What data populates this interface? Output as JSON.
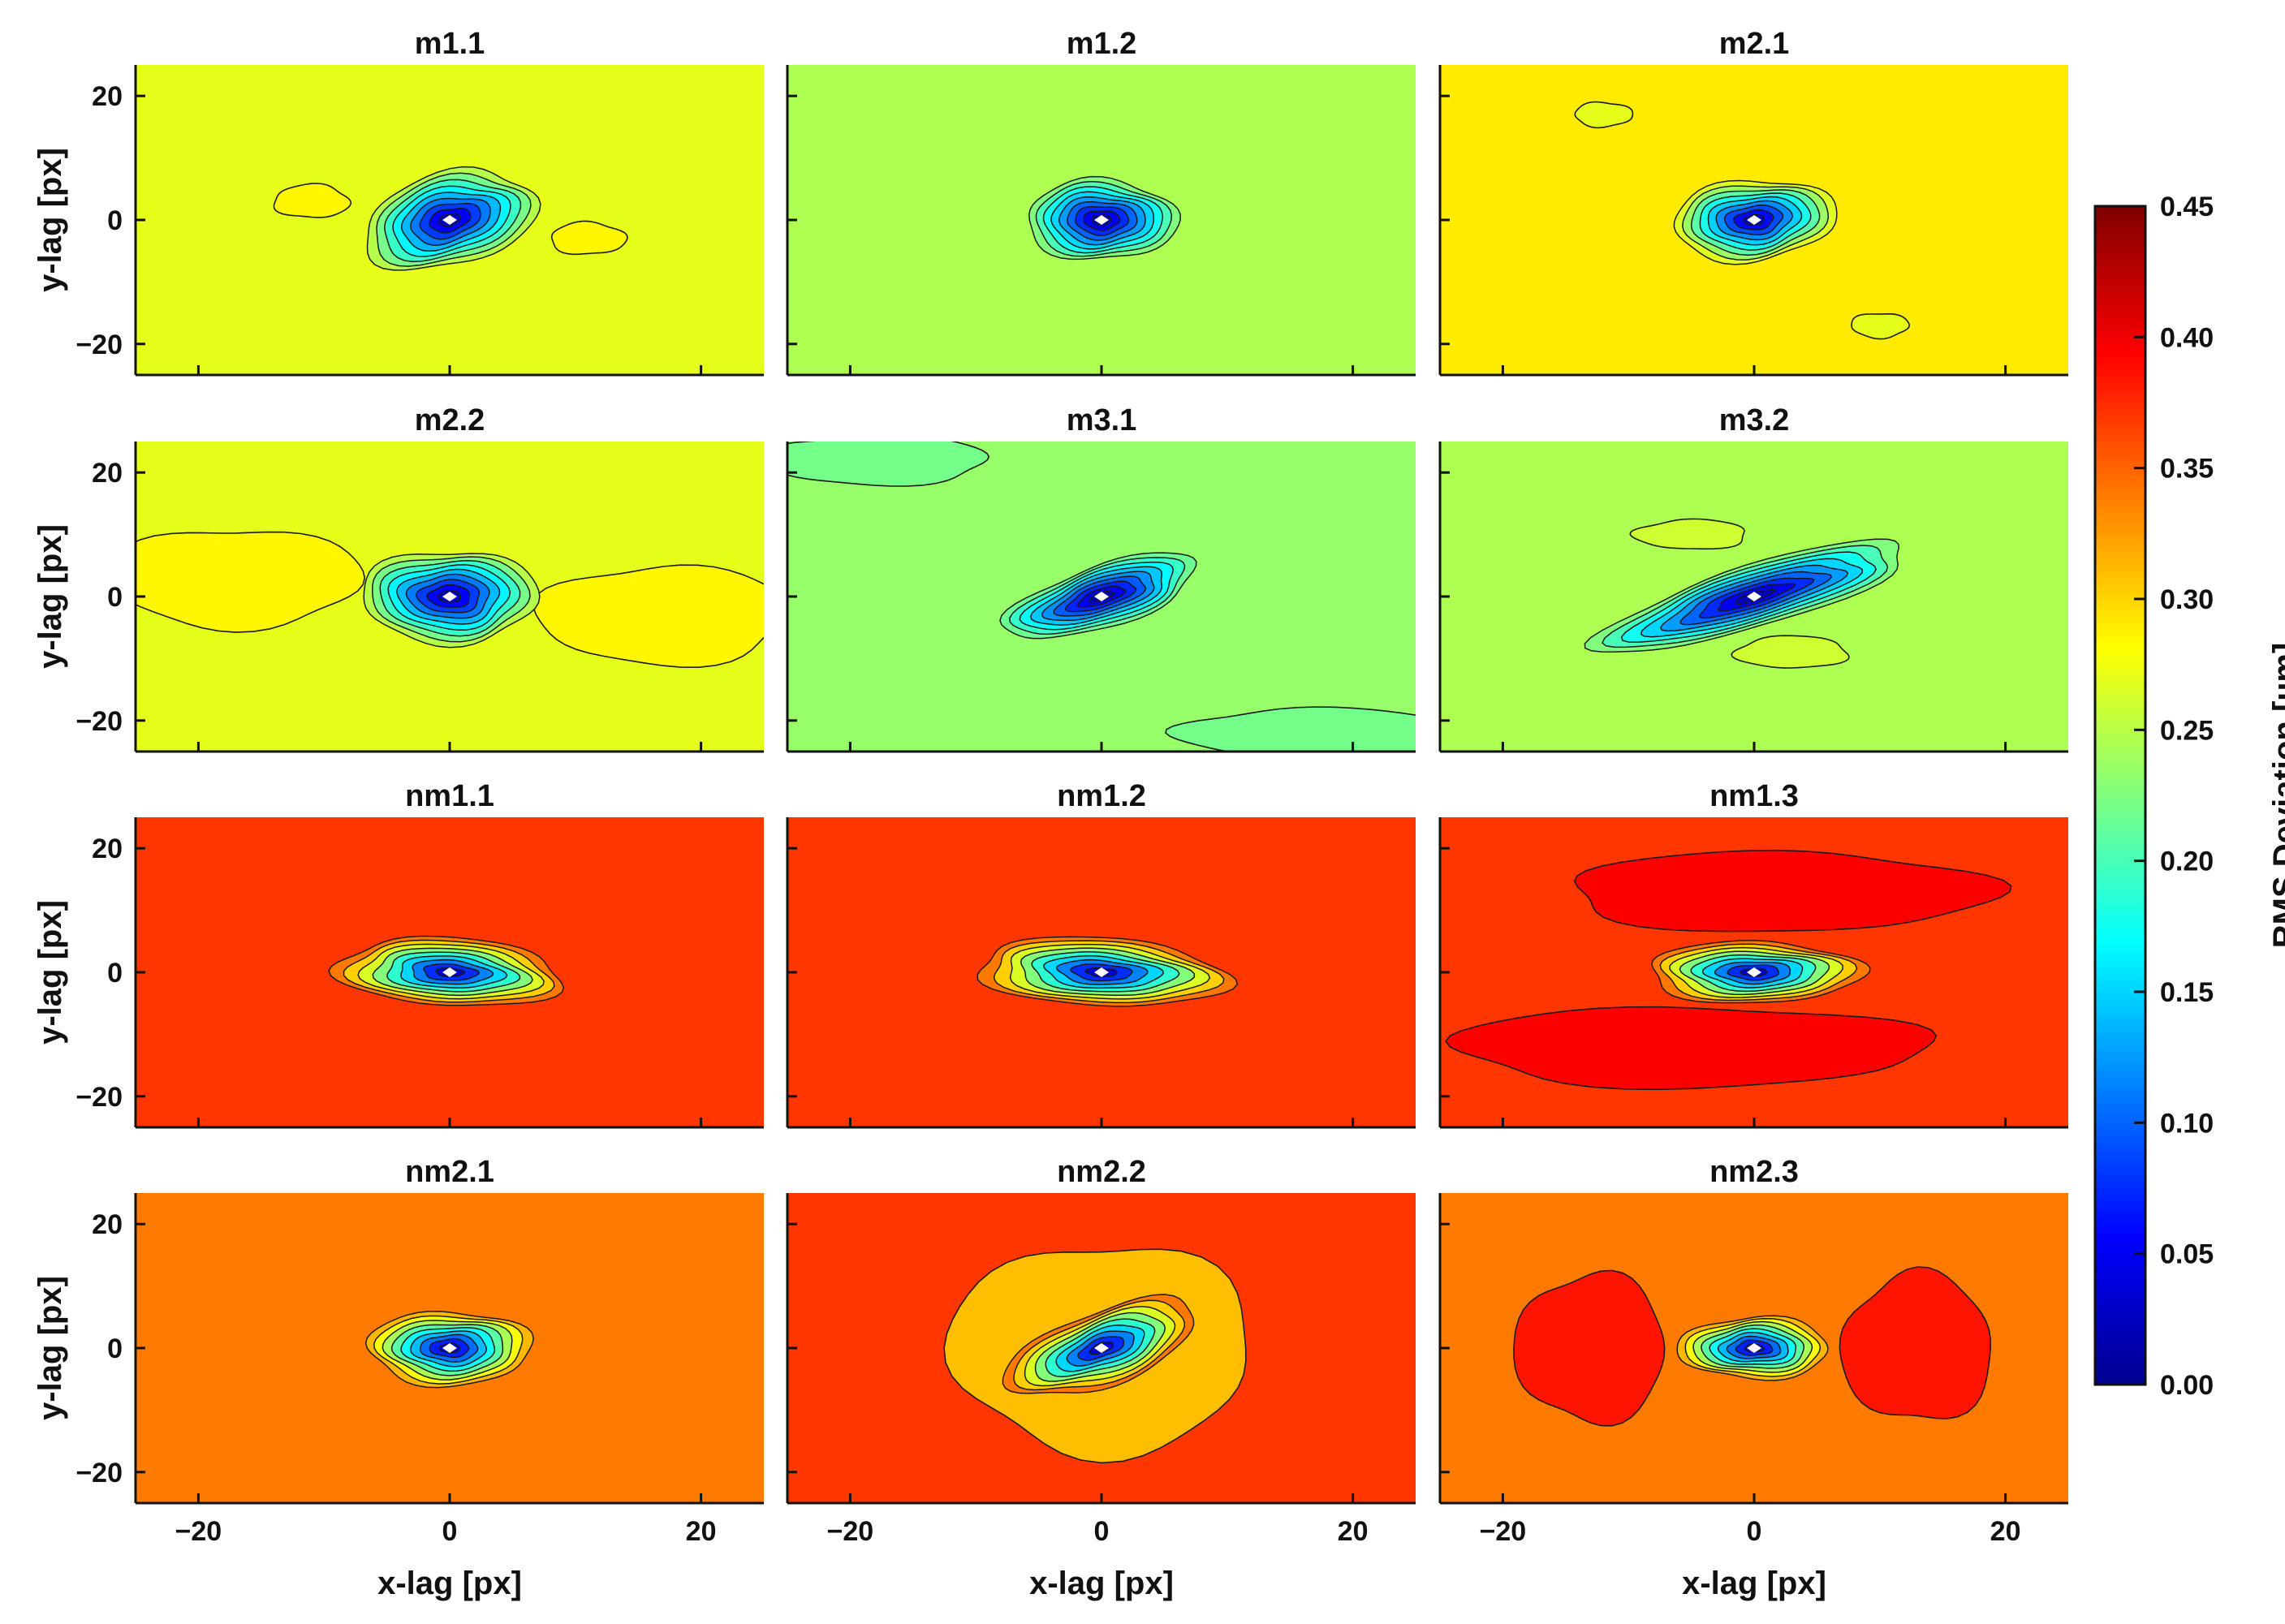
{
  "chart_data": {
    "type": "heatmap",
    "subtype": "filled-contour",
    "layout": {
      "rows": 4,
      "cols": 3
    },
    "xlabel": "x-lag [px]",
    "ylabel": "y-lag [px]",
    "xlim": [
      -25,
      25
    ],
    "ylim": [
      -25,
      25
    ],
    "xticks": [
      -20,
      0,
      20
    ],
    "yticks": [
      -20,
      0,
      20
    ],
    "colorbar": {
      "label": "RMS Deviation [µm]",
      "min": 0.0,
      "max": 0.45,
      "ticks": [
        "0.00",
        "0.05",
        "0.10",
        "0.15",
        "0.20",
        "0.25",
        "0.30",
        "0.35",
        "0.40",
        "0.45"
      ]
    },
    "panels": [
      {
        "title": "m1.1",
        "background": 0.27,
        "center_min": 0.0,
        "center_ellipse": {
          "rx": 7,
          "ry": 7.5,
          "angle": 14
        },
        "blobs": [
          {
            "cx": -11,
            "cy": 3,
            "rx": 3,
            "ry": 2.7,
            "level": 0.285
          },
          {
            "cx": 11,
            "cy": -3,
            "rx": 3,
            "ry": 2.6,
            "level": 0.285
          }
        ]
      },
      {
        "title": "m1.2",
        "background": 0.245,
        "center_min": 0.0,
        "center_ellipse": {
          "rx": 6,
          "ry": 6.5,
          "angle": 0
        },
        "blobs": []
      },
      {
        "title": "m2.1",
        "background": 0.29,
        "center_min": 0.0,
        "center_ellipse": {
          "rx": 6.5,
          "ry": 6.5,
          "angle": 5
        },
        "blobs": [
          {
            "cx": -12,
            "cy": 17,
            "rx": 2.3,
            "ry": 2,
            "level": 0.27
          },
          {
            "cx": 10,
            "cy": -17,
            "rx": 2.3,
            "ry": 2,
            "level": 0.27
          }
        ]
      },
      {
        "title": "m2.2",
        "background": 0.27,
        "center_min": 0.0,
        "center_ellipse": {
          "rx": 7,
          "ry": 7.5,
          "angle": 0
        },
        "blobs": [
          {
            "cx": -17,
            "cy": 3,
            "rx": 10,
            "ry": 8,
            "level": 0.285
          },
          {
            "cx": 17,
            "cy": -3,
            "rx": 10,
            "ry": 8,
            "level": 0.285
          }
        ]
      },
      {
        "title": "m3.1",
        "background": 0.235,
        "center_min": 0.0,
        "center_ellipse": {
          "rx": 8,
          "ry": 5,
          "angle": 18
        },
        "blobs": [
          {
            "cx": -18,
            "cy": 22,
            "rx": 9,
            "ry": 4,
            "level": 0.22
          },
          {
            "cx": 17,
            "cy": -22,
            "rx": 11,
            "ry": 4,
            "level": 0.22
          }
        ]
      },
      {
        "title": "m3.2",
        "background": 0.245,
        "center_min": 0.0,
        "center_ellipse": {
          "rx": 13,
          "ry": 5,
          "angle": 17
        },
        "blobs": [
          {
            "cx": -5,
            "cy": 10,
            "rx": 4.5,
            "ry": 2.4,
            "level": 0.26
          },
          {
            "cx": 3,
            "cy": -9,
            "rx": 4.5,
            "ry": 2.6,
            "level": 0.26
          }
        ]
      },
      {
        "title": "nm1.1",
        "background": 0.37,
        "center_min": 0.0,
        "center_ellipse": {
          "rx": 9,
          "ry": 5.5,
          "angle": -3
        },
        "blobs": []
      },
      {
        "title": "nm1.2",
        "background": 0.37,
        "center_min": 0.0,
        "center_ellipse": {
          "rx": 10,
          "ry": 5.5,
          "angle": -3
        },
        "blobs": []
      },
      {
        "title": "nm1.3",
        "background": 0.37,
        "center_min": 0.0,
        "center_ellipse": {
          "rx": 8.5,
          "ry": 5,
          "angle": 0
        },
        "blobs": [
          {
            "cx": 2,
            "cy": 13,
            "rx": 17,
            "ry": 6.5,
            "level": 0.395
          },
          {
            "cx": -5,
            "cy": -12,
            "rx": 19,
            "ry": 6.5,
            "level": 0.395
          }
        ]
      },
      {
        "title": "nm2.1",
        "background": 0.34,
        "center_min": 0.0,
        "center_ellipse": {
          "rx": 6.5,
          "ry": 6,
          "angle": 0
        },
        "blobs": []
      },
      {
        "title": "nm2.2",
        "background": 0.37,
        "center_min": 0.0,
        "center_ellipse": {
          "rx": 8,
          "ry": 6,
          "angle": 20
        },
        "blobs": [
          {
            "cx": 0,
            "cy": 0,
            "rx": 12,
            "ry": 17,
            "level": 0.31
          }
        ]
      },
      {
        "title": "nm2.3",
        "background": 0.34,
        "center_min": 0.0,
        "center_ellipse": {
          "rx": 6,
          "ry": 5,
          "angle": 0
        },
        "blobs": [
          {
            "cx": -13,
            "cy": 0,
            "rx": 6,
            "ry": 12,
            "level": 0.385
          },
          {
            "cx": 13,
            "cy": 0,
            "rx": 6,
            "ry": 12,
            "level": 0.385
          }
        ]
      }
    ]
  }
}
